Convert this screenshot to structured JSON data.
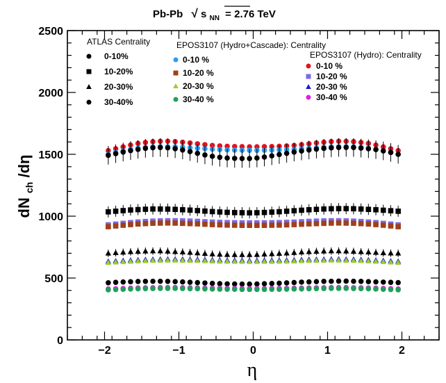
{
  "chart_data": {
    "type": "scatter",
    "title": {
      "prefix": "Pb-Pb",
      "sqrt": "√",
      "s": "s",
      "sub": "NN",
      "suffix": "= 2.76 TeV"
    },
    "xlabel": "η",
    "ylabel": {
      "main": "dN",
      "sub": "ch",
      "tail": "/dη"
    },
    "xlim": [
      -2.5,
      2.5
    ],
    "ylim": [
      0,
      2500
    ],
    "x_ticks": [
      -2,
      -1,
      0,
      1,
      2
    ],
    "x_tick_labels": [
      "−2",
      "−1",
      "0",
      "1",
      "2"
    ],
    "y_ticks": [
      0,
      500,
      1000,
      1500,
      2000,
      2500
    ],
    "y_tick_labels": [
      "0",
      "500",
      "1000",
      "1500",
      "2000",
      "2500"
    ],
    "grid": false,
    "eta": [
      -1.95,
      -1.85,
      -1.75,
      -1.65,
      -1.55,
      -1.45,
      -1.35,
      -1.25,
      -1.15,
      -1.05,
      -0.95,
      -0.85,
      -0.75,
      -0.65,
      -0.55,
      -0.45,
      -0.35,
      -0.25,
      -0.15,
      -0.05,
      0.05,
      0.15,
      0.25,
      0.35,
      0.45,
      0.55,
      0.65,
      0.75,
      0.85,
      0.95,
      1.05,
      1.15,
      1.25,
      1.35,
      1.45,
      1.55,
      1.65,
      1.75,
      1.85,
      1.95
    ],
    "legends": [
      {
        "header": "ATLAS  Centrality",
        "entries": [
          {
            "label": "0-10%",
            "marker": "circle",
            "color": "#000000"
          },
          {
            "label": "10-20%",
            "marker": "square",
            "color": "#000000"
          },
          {
            "label": "20-30%",
            "marker": "triangle",
            "color": "#000000"
          },
          {
            "label": "30-40%",
            "marker": "circle",
            "color": "#000000"
          }
        ]
      },
      {
        "header": "EPOS3107 (Hydro+Cascade): Centrality",
        "entries": [
          {
            "label": "0-10 %",
            "marker": "circle",
            "color": "#2a9df4"
          },
          {
            "label": "10-20 %",
            "marker": "square",
            "color": "#a0401a"
          },
          {
            "label": "20-30 %",
            "marker": "triangle",
            "color": "#9acd32"
          },
          {
            "label": "30-40 %",
            "marker": "circle",
            "color": "#1fa05a"
          }
        ]
      },
      {
        "header": "EPOS3107 (Hydro): Centrality",
        "entries": [
          {
            "label": "0-10 %",
            "marker": "circle",
            "color": "#e0141e"
          },
          {
            "label": "10-20 %",
            "marker": "square",
            "color": "#7b68ee"
          },
          {
            "label": "20-30 %",
            "marker": "triangle",
            "color": "#1a1acd"
          },
          {
            "label": "30-40 %",
            "marker": "circle",
            "color": "#e020e0"
          }
        ]
      }
    ],
    "series": [
      {
        "group": "EPOS3107 (Hydro)",
        "name": "0-10 %",
        "marker": "circle",
        "color": "#e0141e",
        "errors": false,
        "values": [
          1530,
          1545,
          1560,
          1575,
          1588,
          1596,
          1602,
          1605,
          1606,
          1603,
          1598,
          1592,
          1585,
          1578,
          1572,
          1568,
          1565,
          1563,
          1562,
          1561,
          1561,
          1562,
          1563,
          1565,
          1568,
          1572,
          1578,
          1585,
          1592,
          1598,
          1603,
          1606,
          1605,
          1602,
          1596,
          1588,
          1575,
          1560,
          1545,
          1530
        ]
      },
      {
        "group": "EPOS3107 (Hydro+Cascade)",
        "name": "0-10 %",
        "marker": "circle",
        "color": "#2a9df4",
        "errors": false,
        "values": [
          1500,
          1515,
          1528,
          1540,
          1550,
          1556,
          1560,
          1562,
          1562,
          1560,
          1557,
          1553,
          1549,
          1545,
          1541,
          1538,
          1536,
          1534,
          1533,
          1532,
          1532,
          1533,
          1534,
          1536,
          1538,
          1541,
          1545,
          1549,
          1553,
          1557,
          1560,
          1562,
          1562,
          1560,
          1556,
          1550,
          1540,
          1528,
          1515,
          1500
        ]
      },
      {
        "group": "ATLAS",
        "name": "0-10%",
        "marker": "circle",
        "color": "#000000",
        "errors": true,
        "error": 75,
        "values": [
          1492,
          1505,
          1518,
          1530,
          1540,
          1548,
          1553,
          1555,
          1552,
          1545,
          1535,
          1522,
          1508,
          1495,
          1484,
          1476,
          1470,
          1467,
          1466,
          1466,
          1470,
          1478,
          1488,
          1498,
          1508,
          1518,
          1527,
          1535,
          1542,
          1548,
          1552,
          1555,
          1556,
          1555,
          1550,
          1545,
          1538,
          1528,
          1515,
          1500
        ]
      },
      {
        "group": "ATLAS",
        "name": "10-20%",
        "marker": "square",
        "color": "#000000",
        "errors": true,
        "error": 45,
        "values": [
          1035,
          1040,
          1045,
          1050,
          1053,
          1056,
          1058,
          1058,
          1057,
          1055,
          1052,
          1049,
          1045,
          1041,
          1037,
          1034,
          1031,
          1029,
          1028,
          1027,
          1028,
          1030,
          1033,
          1036,
          1040,
          1044,
          1048,
          1052,
          1055,
          1058,
          1060,
          1061,
          1061,
          1060,
          1058,
          1055,
          1052,
          1048,
          1044,
          1040
        ]
      },
      {
        "group": "EPOS3107 (Hydro)",
        "name": "10-20 %",
        "marker": "square",
        "color": "#7b68ee",
        "errors": false,
        "values": [
          930,
          936,
          942,
          948,
          953,
          957,
          960,
          962,
          963,
          963,
          962,
          960,
          958,
          955,
          952,
          950,
          948,
          947,
          946,
          946,
          946,
          946,
          947,
          948,
          950,
          952,
          955,
          958,
          960,
          962,
          963,
          963,
          962,
          960,
          957,
          953,
          948,
          942,
          936,
          930
        ]
      },
      {
        "group": "EPOS3107 (Hydro+Cascade)",
        "name": "10-20 %",
        "marker": "square",
        "color": "#a0401a",
        "errors": false,
        "values": [
          915,
          921,
          927,
          932,
          937,
          940,
          943,
          944,
          945,
          944,
          942,
          940,
          938,
          935,
          932,
          930,
          928,
          927,
          926,
          926,
          926,
          926,
          927,
          928,
          930,
          932,
          935,
          938,
          940,
          942,
          944,
          945,
          944,
          943,
          940,
          937,
          932,
          927,
          921,
          915
        ]
      },
      {
        "group": "ATLAS",
        "name": "20-30%",
        "marker": "triangle",
        "color": "#000000",
        "errors": true,
        "error": 30,
        "values": [
          700,
          704,
          708,
          712,
          715,
          717,
          718,
          718,
          716,
          713,
          710,
          706,
          702,
          698,
          694,
          691,
          689,
          688,
          688,
          688,
          689,
          692,
          695,
          698,
          701,
          705,
          709,
          712,
          715,
          717,
          718,
          718,
          717,
          715,
          712,
          709,
          706,
          703,
          701,
          700
        ]
      },
      {
        "group": "EPOS3107 (Hydro)",
        "name": "20-30 %",
        "marker": "triangle",
        "color": "#1a1acd",
        "errors": false,
        "values": [
          635,
          638,
          641,
          644,
          647,
          649,
          651,
          652,
          653,
          653,
          652,
          651,
          650,
          648,
          646,
          645,
          644,
          643,
          643,
          642,
          642,
          643,
          643,
          644,
          645,
          646,
          648,
          650,
          651,
          652,
          653,
          653,
          652,
          651,
          649,
          647,
          644,
          641,
          638,
          635
        ]
      },
      {
        "group": "EPOS3107 (Hydro+Cascade)",
        "name": "20-30 %",
        "marker": "triangle",
        "color": "#9acd32",
        "errors": false,
        "values": [
          625,
          628,
          631,
          634,
          637,
          639,
          641,
          642,
          643,
          643,
          642,
          641,
          640,
          638,
          636,
          635,
          634,
          633,
          633,
          632,
          632,
          633,
          633,
          634,
          635,
          636,
          638,
          640,
          641,
          642,
          643,
          643,
          642,
          641,
          639,
          637,
          634,
          631,
          628,
          625
        ]
      },
      {
        "group": "ATLAS",
        "name": "30-40%",
        "marker": "circle",
        "color": "#000000",
        "errors": true,
        "error": 18,
        "values": [
          462,
          465,
          468,
          470,
          472,
          473,
          474,
          474,
          473,
          471,
          469,
          466,
          463,
          460,
          457,
          455,
          453,
          452,
          451,
          451,
          452,
          454,
          456,
          458,
          461,
          464,
          467,
          469,
          471,
          473,
          474,
          475,
          475,
          474,
          473,
          471,
          469,
          467,
          465,
          463
        ]
      },
      {
        "group": "EPOS3107 (Hydro)",
        "name": "30-40 %",
        "marker": "circle",
        "color": "#e020e0",
        "errors": false,
        "values": [
          412,
          414,
          416,
          418,
          420,
          421,
          422,
          423,
          423,
          423,
          422,
          421,
          420,
          419,
          418,
          417,
          416,
          416,
          415,
          415,
          415,
          415,
          416,
          416,
          417,
          418,
          419,
          420,
          421,
          422,
          423,
          423,
          423,
          422,
          421,
          420,
          418,
          416,
          414,
          412
        ]
      },
      {
        "group": "EPOS3107 (Hydro+Cascade)",
        "name": "30-40 %",
        "marker": "circle",
        "color": "#1fa05a",
        "errors": false,
        "values": [
          405,
          407,
          409,
          411,
          413,
          414,
          415,
          416,
          416,
          416,
          415,
          414,
          413,
          412,
          411,
          410,
          409,
          409,
          408,
          408,
          408,
          408,
          409,
          409,
          410,
          411,
          412,
          413,
          414,
          415,
          416,
          416,
          416,
          415,
          414,
          413,
          411,
          409,
          407,
          405
        ]
      }
    ]
  }
}
